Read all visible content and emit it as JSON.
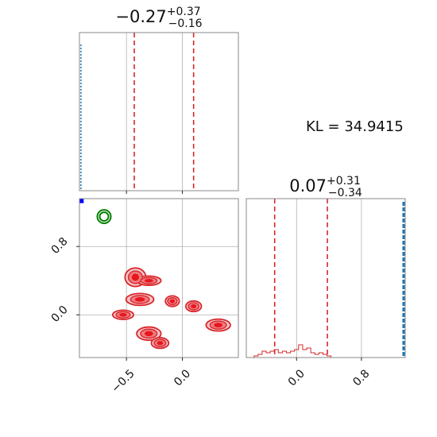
{
  "chart_data": {
    "type": "corner",
    "kl_annotation": "KL = 34.9415",
    "params": [
      {
        "title_main": "−0.27",
        "title_plus": "+0.37",
        "title_minus": "−0.16",
        "xlim": [
          -0.92,
          0.5
        ],
        "xticks": [
          -0.5,
          0.0
        ],
        "xtick_labels": [
          "−0.5",
          "0.0"
        ],
        "quantile_lines": [
          -0.43,
          0.1
        ]
      },
      {
        "title_main": "0.07",
        "title_plus": "+0.31",
        "title_minus": "−0.34",
        "xlim": [
          -0.62,
          1.34
        ],
        "xticks": [
          0.0,
          0.8
        ],
        "xtick_labels": [
          "0.0",
          "0.8"
        ],
        "quantile_lines": [
          -0.27,
          0.38
        ]
      }
    ],
    "marginal_1": {
      "reference_line_x": -0.91,
      "reference_color": "#1f77b4",
      "samples_color": "#d62728"
    },
    "marginal_2": {
      "reference_line_x": 1.32,
      "reference_color": "#1f77b4",
      "samples_color": "#d62728",
      "hist_x": [
        -0.55,
        -0.5,
        -0.45,
        -0.4,
        -0.35,
        -0.3,
        -0.25,
        -0.2,
        -0.15,
        -0.1,
        -0.05,
        0.0,
        0.05,
        0.1,
        0.15,
        0.2,
        0.25,
        0.3,
        0.35,
        0.4,
        0.45,
        0.5
      ],
      "hist_y": [
        0.0,
        0.01,
        0.02,
        0.04,
        0.03,
        0.04,
        0.05,
        0.03,
        0.04,
        0.03,
        0.04,
        0.05,
        0.08,
        0.05,
        0.06,
        0.03,
        0.02,
        0.03,
        0.02,
        0.01,
        0.0,
        0.0
      ],
      "ymax": 1.0
    },
    "joint": {
      "xlim": [
        -0.92,
        0.5
      ],
      "ylim": [
        -0.5,
        1.36
      ],
      "yticks": [
        0.0,
        0.8
      ],
      "ytick_labels": [
        "0.0",
        "0.8"
      ],
      "reference_point": {
        "x": -0.9,
        "y": 1.34,
        "color": "#0000ff"
      },
      "truth_contour": {
        "x": -0.7,
        "y": 1.15,
        "color": "#008000"
      },
      "sample_clusters": [
        {
          "x": -0.42,
          "y": 0.44,
          "sx": 0.06,
          "sy": 0.07
        },
        {
          "x": -0.3,
          "y": 0.4,
          "sx": 0.07,
          "sy": 0.035
        },
        {
          "x": -0.38,
          "y": 0.18,
          "sx": 0.08,
          "sy": 0.045
        },
        {
          "x": -0.09,
          "y": 0.16,
          "sx": 0.04,
          "sy": 0.04
        },
        {
          "x": 0.1,
          "y": 0.1,
          "sx": 0.045,
          "sy": 0.04
        },
        {
          "x": -0.53,
          "y": 0.0,
          "sx": 0.06,
          "sy": 0.035
        },
        {
          "x": 0.32,
          "y": -0.12,
          "sx": 0.07,
          "sy": 0.045
        },
        {
          "x": -0.3,
          "y": -0.22,
          "sx": 0.07,
          "sy": 0.05
        },
        {
          "x": -0.2,
          "y": -0.33,
          "sx": 0.05,
          "sy": 0.04
        }
      ],
      "sample_color": "#e8161c"
    },
    "grid": true
  }
}
